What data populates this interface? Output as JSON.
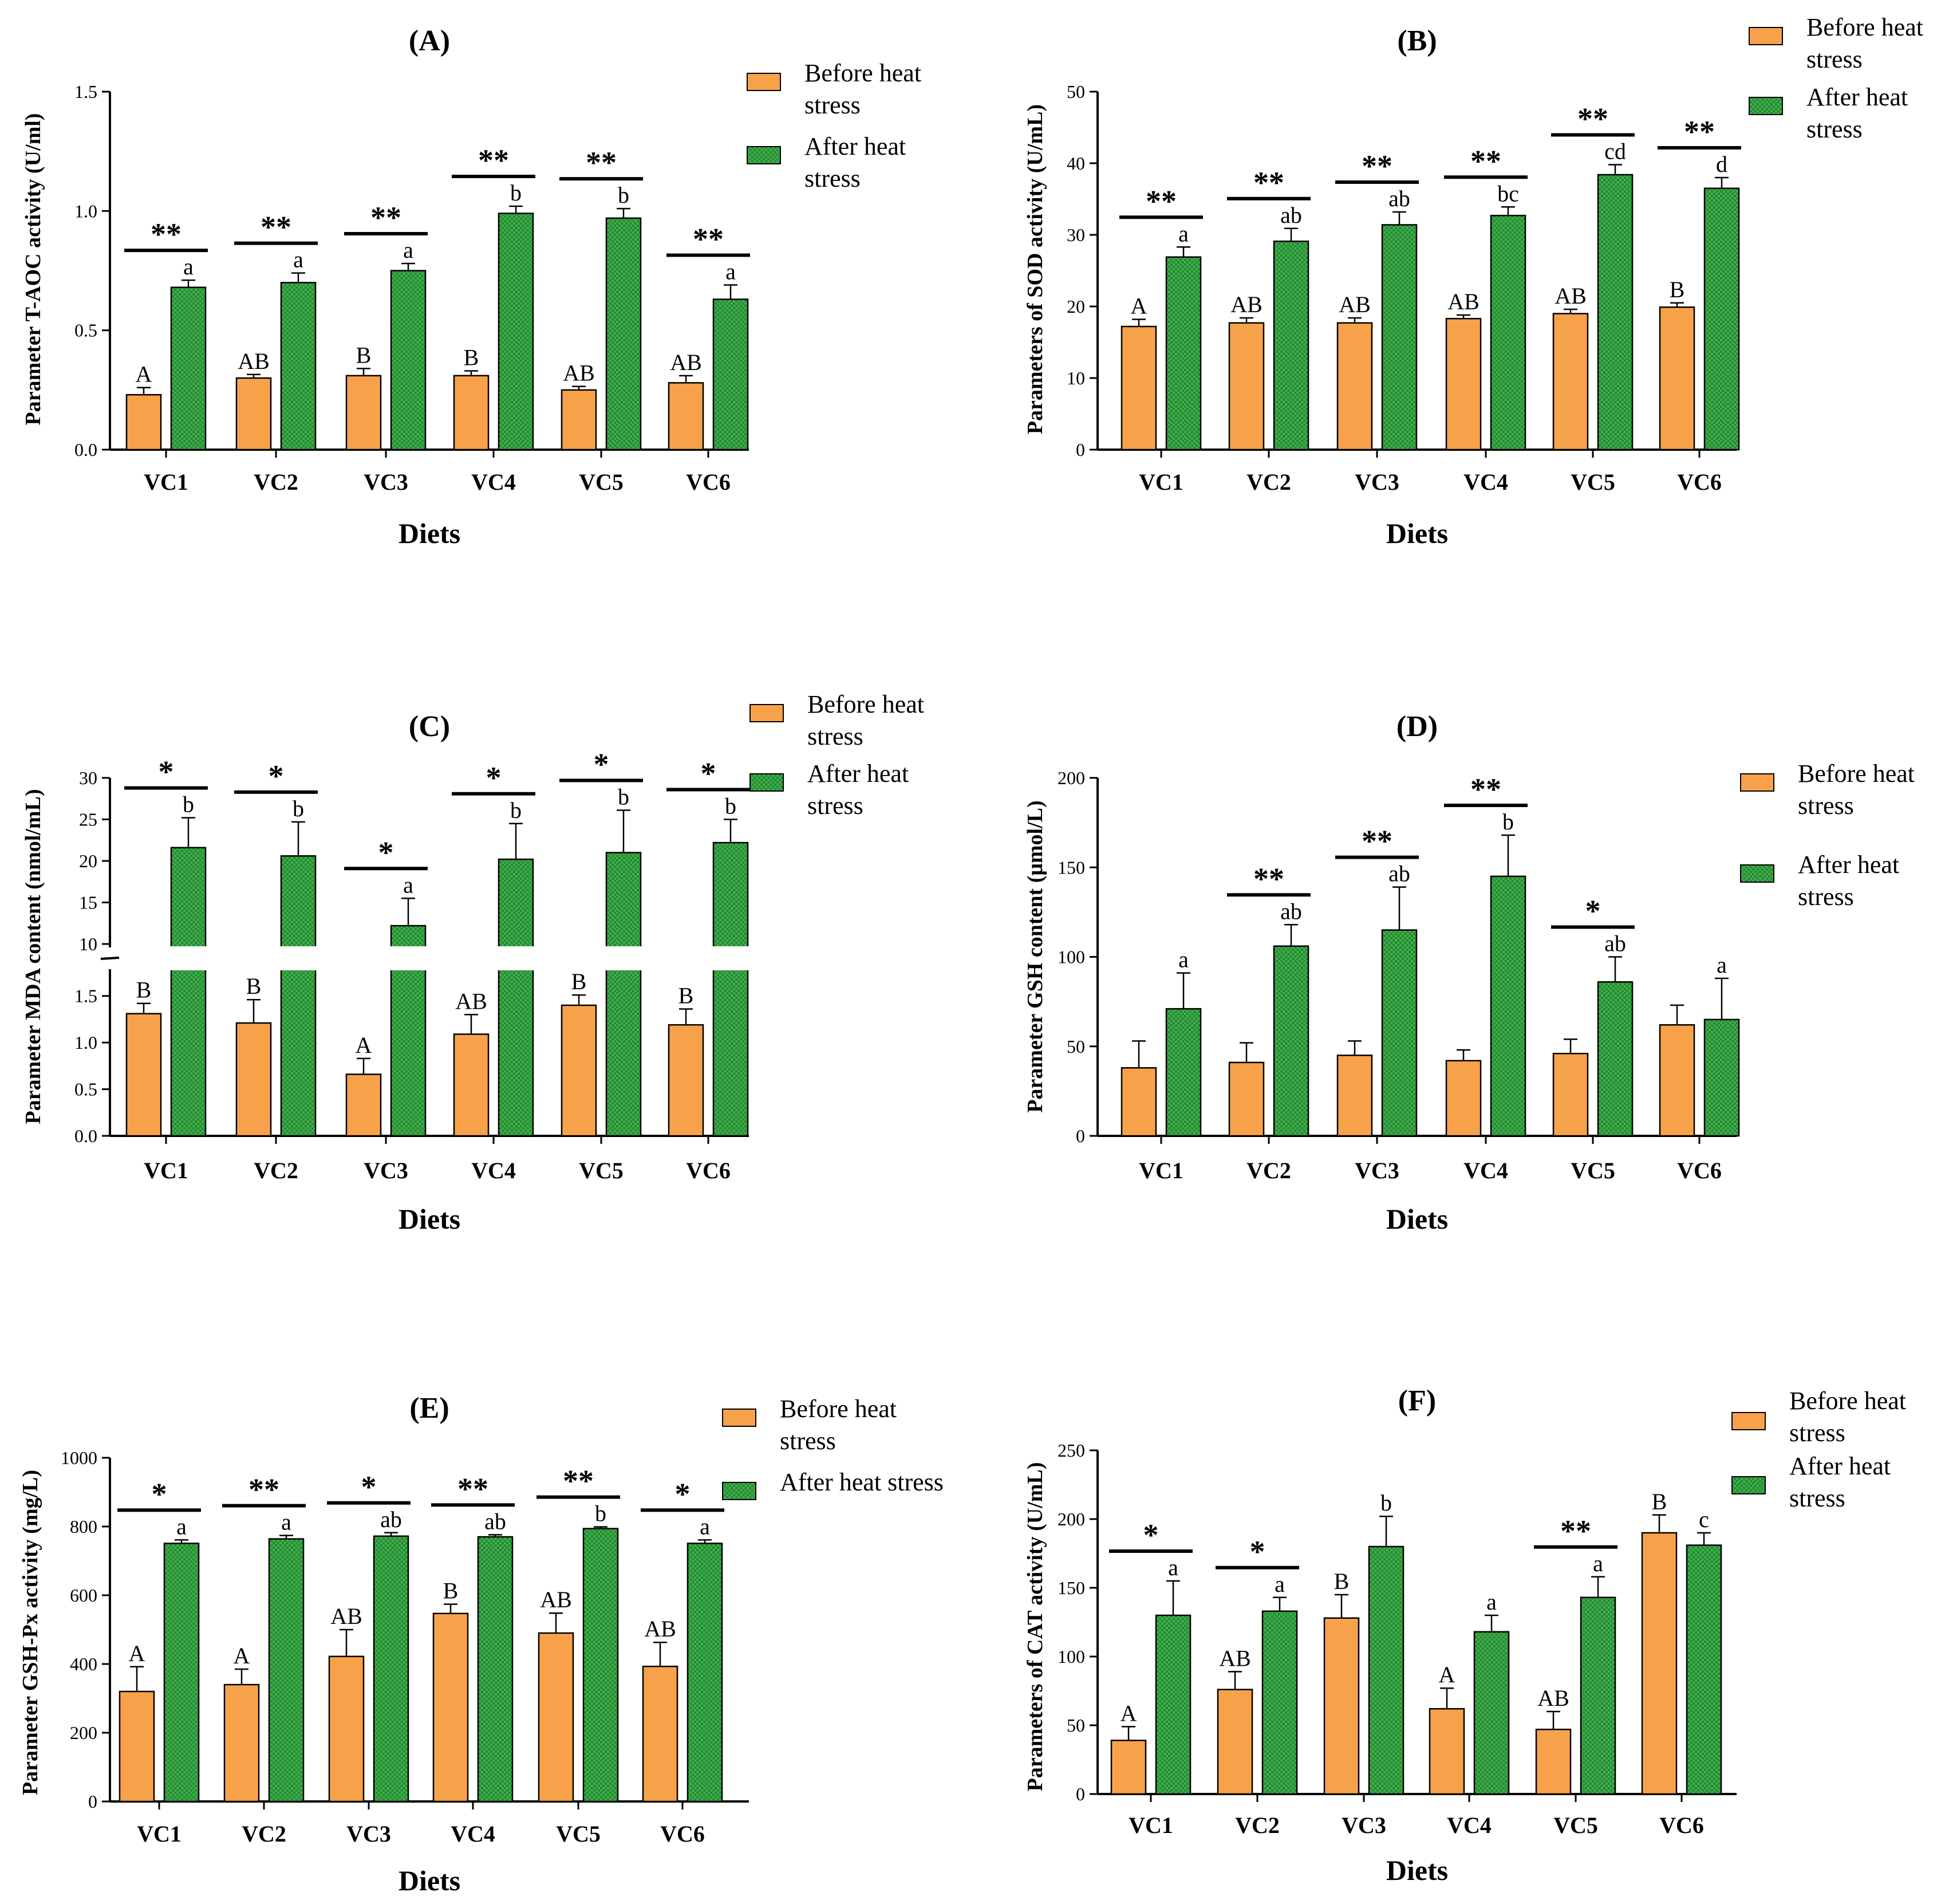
{
  "chart_data": [
    {
      "id": "A",
      "type": "bar",
      "title": "(A)",
      "xlabel": "Diets",
      "ylabel": "Parameter T-AOC activity (U/ml)",
      "ylim": [
        0,
        1.5
      ],
      "yticks": [
        "0.0",
        "0.5",
        "1.0",
        "1.5"
      ],
      "categories": [
        "VC1",
        "VC2",
        "VC3",
        "VC4",
        "VC5",
        "VC6"
      ],
      "series": [
        {
          "name": "Before heat stress",
          "values": [
            0.23,
            0.3,
            0.31,
            0.31,
            0.25,
            0.28
          ],
          "errors": [
            0.03,
            0.015,
            0.03,
            0.02,
            0.015,
            0.03
          ],
          "letters": [
            "A",
            "AB",
            "B",
            "B",
            "AB",
            "AB"
          ]
        },
        {
          "name": "After heat stress",
          "values": [
            0.68,
            0.7,
            0.75,
            0.99,
            0.97,
            0.63
          ],
          "errors": [
            0.03,
            0.04,
            0.03,
            0.03,
            0.04,
            0.06
          ],
          "letters": [
            "a",
            "a",
            "a",
            "b",
            "b",
            "a"
          ]
        }
      ],
      "significance": [
        "**",
        "**",
        "**",
        "**",
        "**",
        "**"
      ],
      "legend": [
        "Before heat stress",
        "After heat stress"
      ],
      "legend_position": "top-right"
    },
    {
      "id": "B",
      "type": "bar",
      "title": "(B)",
      "xlabel": "Diets",
      "ylabel": "Parameters of SOD activity (U/mL)",
      "ylim": [
        0,
        50
      ],
      "yticks": [
        "0",
        "10",
        "20",
        "30",
        "40",
        "50"
      ],
      "categories": [
        "VC1",
        "VC2",
        "VC3",
        "VC4",
        "VC5",
        "VC6"
      ],
      "series": [
        {
          "name": "Before heat stress",
          "values": [
            17.2,
            17.7,
            17.7,
            18.3,
            19.0,
            19.9
          ],
          "errors": [
            1.0,
            0.7,
            0.7,
            0.5,
            0.6,
            0.6
          ],
          "letters": [
            "A",
            "AB",
            "AB",
            "AB",
            "AB",
            "B"
          ]
        },
        {
          "name": "After heat stress",
          "values": [
            26.9,
            29.1,
            31.4,
            32.7,
            38.4,
            36.5
          ],
          "errors": [
            1.4,
            1.8,
            1.8,
            1.2,
            1.4,
            1.5
          ],
          "letters": [
            "a",
            "ab",
            "ab",
            "bc",
            "cd",
            "d"
          ]
        }
      ],
      "significance": [
        "**",
        "**",
        "**",
        "**",
        "**",
        "**"
      ],
      "legend": [
        "Before heat stress",
        "After heat stress"
      ],
      "legend_position": "top-right"
    },
    {
      "id": "C",
      "type": "bar",
      "title": "(C)",
      "xlabel": "Diets",
      "ylabel": "Parameter MDA content (nmol/mL)",
      "broken_axis": true,
      "ylim_lower": [
        0,
        1.75
      ],
      "ylim_upper": [
        10,
        30
      ],
      "yticks_lower": [
        "0.0",
        "0.5",
        "1.0",
        "1.5"
      ],
      "yticks_upper": [
        "10",
        "15",
        "20",
        "25",
        "30"
      ],
      "categories": [
        "VC1",
        "VC2",
        "VC3",
        "VC4",
        "VC5",
        "VC6"
      ],
      "series": [
        {
          "name": "Before heat stress",
          "values": [
            1.31,
            1.21,
            0.66,
            1.09,
            1.4,
            1.19
          ],
          "errors": [
            0.11,
            0.25,
            0.17,
            0.21,
            0.11,
            0.17
          ],
          "letters": [
            "B",
            "B",
            "A",
            "AB",
            "B",
            "B"
          ]
        },
        {
          "name": "After heat stress",
          "values": [
            21.6,
            20.6,
            12.2,
            20.2,
            21.0,
            22.2
          ],
          "errors": [
            3.6,
            4.1,
            3.3,
            4.3,
            5.1,
            2.8
          ],
          "letters": [
            "b",
            "b",
            "a",
            "b",
            "b",
            "b"
          ]
        }
      ],
      "significance": [
        "*",
        "*",
        "*",
        "*",
        "*",
        "*"
      ],
      "legend": [
        "Before heat stress",
        "After heat stress"
      ],
      "legend_position": "top-right"
    },
    {
      "id": "D",
      "type": "bar",
      "title": "(D)",
      "xlabel": "Diets",
      "ylabel": "Parameter GSH content (μmol/L)",
      "ylim": [
        0,
        200
      ],
      "yticks": [
        "0",
        "50",
        "100",
        "150",
        "200"
      ],
      "categories": [
        "VC1",
        "VC2",
        "VC3",
        "VC4",
        "VC5",
        "VC6"
      ],
      "series": [
        {
          "name": "Before heat stress",
          "values": [
            38,
            41,
            45,
            42,
            46,
            62
          ],
          "errors": [
            15,
            11,
            8,
            6,
            8,
            11
          ],
          "letters": [
            "",
            "",
            "",
            "",
            "",
            ""
          ]
        },
        {
          "name": "After heat stress",
          "values": [
            71,
            106,
            115,
            145,
            86,
            65
          ],
          "errors": [
            20,
            12,
            24,
            23,
            14,
            23
          ],
          "letters": [
            "a",
            "ab",
            "ab",
            "b",
            "ab",
            "a"
          ]
        }
      ],
      "significance": [
        "",
        "**",
        "**",
        "**",
        "*",
        ""
      ],
      "legend": [
        "Before heat stress",
        "After heat stress"
      ],
      "legend_position": "right"
    },
    {
      "id": "E",
      "type": "bar",
      "title": "(E)",
      "xlabel": "Diets",
      "ylabel": "Parameter  GSH-Px activity (mg/L)",
      "ylim": [
        0,
        1000
      ],
      "yticks": [
        "0",
        "200",
        "400",
        "600",
        "800",
        "1000"
      ],
      "categories": [
        "VC1",
        "VC2",
        "VC3",
        "VC4",
        "VC5",
        "VC6"
      ],
      "series": [
        {
          "name": "Before heat stress",
          "values": [
            320,
            340,
            422,
            547,
            490,
            393
          ],
          "errors": [
            72,
            45,
            78,
            27,
            58,
            70
          ],
          "letters": [
            "A",
            "A",
            "AB",
            "B",
            "AB",
            "AB"
          ]
        },
        {
          "name": "After heat stress",
          "values": [
            751,
            764,
            772,
            770,
            794,
            751
          ],
          "errors": [
            10,
            10,
            10,
            6,
            5,
            10
          ],
          "letters": [
            "a",
            "a",
            "ab",
            "ab",
            "b",
            "a"
          ]
        }
      ],
      "significance": [
        "*",
        "**",
        "*",
        "**",
        "**",
        "*"
      ],
      "legend": [
        "Before heat stress",
        "After heat stress"
      ],
      "legend_position": "top-right"
    },
    {
      "id": "F",
      "type": "bar",
      "title": "(F)",
      "xlabel": "Diets",
      "ylabel": "Parameters of CAT activity (U/mL)",
      "ylim": [
        0,
        250
      ],
      "yticks": [
        "0",
        "50",
        "100",
        "150",
        "200",
        "250"
      ],
      "categories": [
        "VC1",
        "VC2",
        "VC3",
        "VC4",
        "VC5",
        "VC6"
      ],
      "series": [
        {
          "name": "Before heat stress",
          "values": [
            39,
            76,
            128,
            62,
            47,
            190
          ],
          "errors": [
            10,
            13,
            17,
            15,
            13,
            13
          ],
          "letters": [
            "A",
            "AB",
            "B",
            "A",
            "AB",
            "B"
          ]
        },
        {
          "name": "After heat stress",
          "values": [
            130,
            133,
            180,
            118,
            143,
            181
          ],
          "errors": [
            25,
            10,
            22,
            12,
            15,
            9
          ],
          "letters": [
            "a",
            "a",
            "b",
            "a",
            "a",
            "c"
          ]
        }
      ],
      "significance": [
        "*",
        "*",
        "",
        "",
        "**",
        ""
      ],
      "legend": [
        "Before heat stress",
        "After heat stress"
      ],
      "legend_position": "top-right"
    }
  ],
  "colors": {
    "before": "#f7a24a",
    "after": "#3dae4a",
    "after_dark": "#2a8a35",
    "axis": "#000000"
  }
}
